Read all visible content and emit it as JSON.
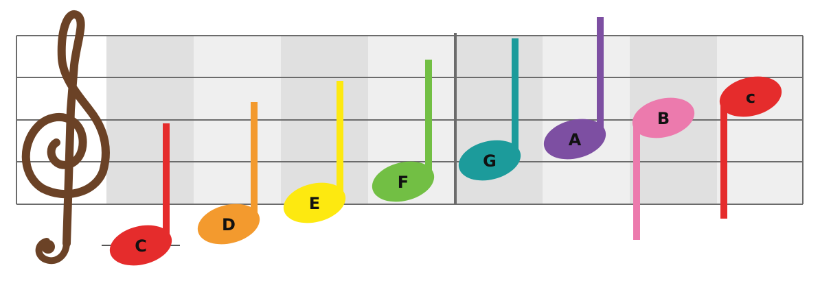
{
  "colors": {
    "background": "#ffffff",
    "staff_line": "#6b6b6b",
    "band_dark": "#e0e0e0",
    "band_light": "#efefef",
    "clef": "#6b4226"
  },
  "clef": {
    "icon": "treble-clef-icon"
  },
  "notes": [
    {
      "letter": "C",
      "color": "#e52c2c",
      "stem": "up",
      "ledger_line": true
    },
    {
      "letter": "D",
      "color": "#f39a2e",
      "stem": "up",
      "ledger_line": false
    },
    {
      "letter": "E",
      "color": "#fde910",
      "stem": "up",
      "ledger_line": false
    },
    {
      "letter": "F",
      "color": "#72bf44",
      "stem": "up",
      "ledger_line": false
    },
    {
      "letter": "G",
      "color": "#1c9b9b",
      "stem": "up",
      "ledger_line": false
    },
    {
      "letter": "A",
      "color": "#7d4fa2",
      "stem": "up",
      "ledger_line": false
    },
    {
      "letter": "B",
      "color": "#ec7aad",
      "stem": "down",
      "ledger_line": false
    },
    {
      "letter": "c",
      "color": "#e52c2c",
      "stem": "down",
      "ledger_line": false
    }
  ]
}
